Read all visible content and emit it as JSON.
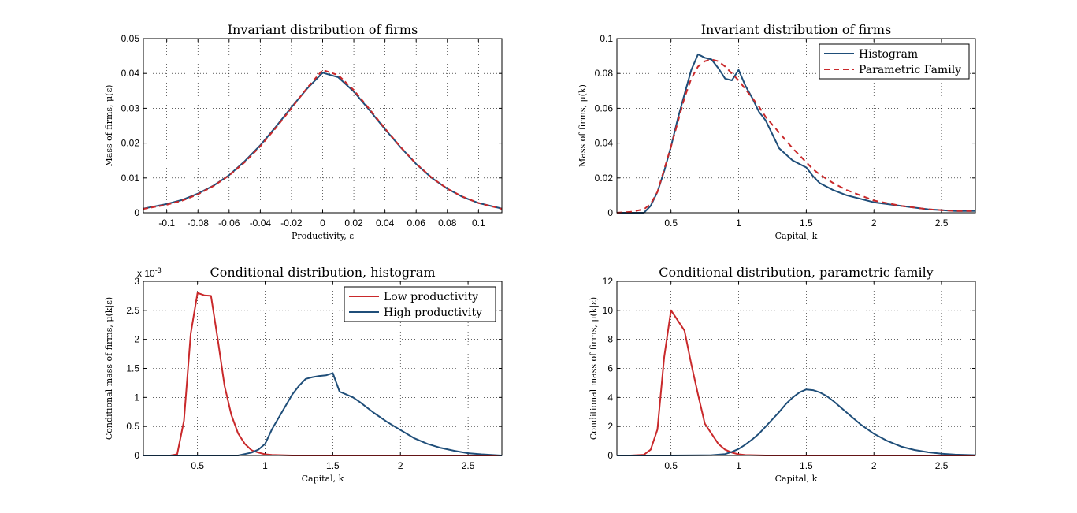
{
  "chart_data": [
    {
      "type": "line",
      "title": "Invariant distribution of firms",
      "xlabel": "Productivity, ε",
      "ylabel": "Mass of firms, μ(ε)",
      "xlim": [
        -0.115,
        0.115
      ],
      "ylim": [
        0,
        0.05
      ],
      "xticks": [
        -0.1,
        -0.08,
        -0.06,
        -0.04,
        -0.02,
        0,
        0.02,
        0.04,
        0.06,
        0.08,
        0.1
      ],
      "xtick_labels": [
        "-0.1",
        "-0.08",
        "-0.06",
        "-0.04",
        "-0.02",
        "0",
        "0.02",
        "0.04",
        "0.06",
        "0.08",
        "0.1"
      ],
      "yticks": [
        0,
        0.01,
        0.02,
        0.03,
        0.04,
        0.05
      ],
      "ytick_labels": [
        "0",
        "0.01",
        "0.02",
        "0.03",
        "0.04",
        "0.05"
      ],
      "grid": true,
      "series": [
        {
          "color": "#1f4e79",
          "dash": "none",
          "x": [
            -0.115,
            -0.1,
            -0.09,
            -0.08,
            -0.07,
            -0.06,
            -0.05,
            -0.04,
            -0.03,
            -0.02,
            -0.01,
            0,
            0.01,
            0.02,
            0.03,
            0.04,
            0.05,
            0.06,
            0.07,
            0.08,
            0.09,
            0.1,
            0.115
          ],
          "y": [
            0.0012,
            0.0025,
            0.0037,
            0.0055,
            0.0078,
            0.0108,
            0.0148,
            0.0194,
            0.0247,
            0.0303,
            0.0356,
            0.0402,
            0.0389,
            0.0348,
            0.0295,
            0.024,
            0.0188,
            0.014,
            0.01,
            0.0069,
            0.0045,
            0.0028,
            0.0012
          ]
        },
        {
          "color": "#c9292b",
          "dash": "6,4",
          "x": [
            -0.115,
            -0.1,
            -0.09,
            -0.08,
            -0.07,
            -0.06,
            -0.05,
            -0.04,
            -0.03,
            -0.02,
            -0.01,
            0,
            0.01,
            0.02,
            0.03,
            0.04,
            0.05,
            0.06,
            0.07,
            0.08,
            0.09,
            0.1,
            0.115
          ],
          "y": [
            0.0011,
            0.0023,
            0.0035,
            0.0053,
            0.0077,
            0.0107,
            0.0145,
            0.0191,
            0.0244,
            0.03,
            0.0358,
            0.041,
            0.0395,
            0.0352,
            0.0298,
            0.0242,
            0.0189,
            0.0141,
            0.0101,
            0.0069,
            0.0046,
            0.0028,
            0.0011
          ]
        }
      ]
    },
    {
      "type": "line",
      "title": "Invariant distribution of firms",
      "xlabel": "Capital, k",
      "ylabel": "Mass of firms, μ(k)",
      "xlim": [
        0.1,
        2.75
      ],
      "ylim": [
        0,
        0.1
      ],
      "xticks": [
        0.5,
        1,
        1.5,
        2,
        2.5
      ],
      "xtick_labels": [
        "0.5",
        "1",
        "1.5",
        "2",
        "2.5"
      ],
      "yticks": [
        0,
        0.02,
        0.04,
        0.06,
        0.08,
        0.1
      ],
      "ytick_labels": [
        "0",
        "0.02",
        "0.04",
        "0.06",
        "0.08",
        "0.1"
      ],
      "grid": true,
      "legend": {
        "placement": "top-right",
        "entries": [
          "Histogram",
          "Parametric Family"
        ]
      },
      "series": [
        {
          "name": "Histogram",
          "color": "#1f4e79",
          "dash": "none",
          "x": [
            0.1,
            0.2,
            0.3,
            0.35,
            0.4,
            0.45,
            0.5,
            0.55,
            0.6,
            0.65,
            0.7,
            0.75,
            0.8,
            0.85,
            0.9,
            0.95,
            1.0,
            1.05,
            1.1,
            1.15,
            1.2,
            1.3,
            1.4,
            1.5,
            1.55,
            1.6,
            1.7,
            1.8,
            1.9,
            2.0,
            2.2,
            2.4,
            2.6,
            2.75
          ],
          "y": [
            0,
            0,
            0,
            0.004,
            0.012,
            0.024,
            0.038,
            0.054,
            0.068,
            0.082,
            0.091,
            0.089,
            0.088,
            0.083,
            0.077,
            0.076,
            0.082,
            0.073,
            0.066,
            0.058,
            0.053,
            0.037,
            0.03,
            0.026,
            0.021,
            0.017,
            0.013,
            0.01,
            0.008,
            0.006,
            0.004,
            0.002,
            0.001,
            0.001
          ]
        },
        {
          "name": "Parametric Family",
          "color": "#c9292b",
          "dash": "7,5",
          "x": [
            0.1,
            0.2,
            0.3,
            0.35,
            0.4,
            0.45,
            0.5,
            0.55,
            0.6,
            0.65,
            0.7,
            0.75,
            0.8,
            0.85,
            0.9,
            0.95,
            1.0,
            1.05,
            1.1,
            1.15,
            1.2,
            1.3,
            1.4,
            1.5,
            1.55,
            1.6,
            1.7,
            1.8,
            1.9,
            2.0,
            2.2,
            2.4,
            2.6,
            2.75
          ],
          "y": [
            0,
            0.0005,
            0.002,
            0.005,
            0.012,
            0.025,
            0.038,
            0.052,
            0.066,
            0.077,
            0.084,
            0.087,
            0.088,
            0.087,
            0.084,
            0.08,
            0.076,
            0.071,
            0.066,
            0.061,
            0.055,
            0.046,
            0.037,
            0.029,
            0.025,
            0.022,
            0.017,
            0.013,
            0.01,
            0.007,
            0.004,
            0.002,
            0.001,
            0.001
          ]
        }
      ]
    },
    {
      "type": "line",
      "title": "Conditional distribution, histogram",
      "xlabel": "Capital, k",
      "ylabel": "Conditional mass of firms, μ(k|ε)",
      "y_multiplier": "x 10",
      "y_multiplier_exp": "-3",
      "xlim": [
        0.1,
        2.75
      ],
      "ylim": [
        0,
        3
      ],
      "xticks": [
        0.5,
        1,
        1.5,
        2,
        2.5
      ],
      "xtick_labels": [
        "0.5",
        "1",
        "1.5",
        "2",
        "2.5"
      ],
      "yticks": [
        0,
        0.5,
        1,
        1.5,
        2,
        2.5,
        3
      ],
      "ytick_labels": [
        "0",
        "0.5",
        "1",
        "1.5",
        "2",
        "2.5",
        "3"
      ],
      "grid": true,
      "legend": {
        "placement": "top-right",
        "entries": [
          "Low productivity",
          "High productivity"
        ]
      },
      "series": [
        {
          "name": "Low productivity",
          "color": "#c9292b",
          "dash": "none",
          "x": [
            0.1,
            0.2,
            0.3,
            0.35,
            0.4,
            0.45,
            0.5,
            0.55,
            0.6,
            0.65,
            0.7,
            0.75,
            0.8,
            0.85,
            0.9,
            0.95,
            1.0,
            1.05,
            1.2,
            1.5,
            2.0,
            2.75
          ],
          "y": [
            0,
            0,
            0,
            0.02,
            0.6,
            2.1,
            2.8,
            2.76,
            2.75,
            2.0,
            1.2,
            0.7,
            0.38,
            0.2,
            0.09,
            0.05,
            0.02,
            0.01,
            0,
            0,
            0,
            0
          ]
        },
        {
          "name": "High productivity",
          "color": "#1f4e79",
          "dash": "none",
          "x": [
            0.1,
            0.5,
            0.8,
            0.9,
            0.95,
            1.0,
            1.05,
            1.1,
            1.15,
            1.2,
            1.25,
            1.3,
            1.35,
            1.4,
            1.45,
            1.5,
            1.55,
            1.6,
            1.65,
            1.7,
            1.8,
            1.9,
            2.0,
            2.1,
            2.2,
            2.3,
            2.4,
            2.5,
            2.6,
            2.75
          ],
          "y": [
            0,
            0,
            0,
            0.05,
            0.1,
            0.2,
            0.45,
            0.65,
            0.85,
            1.05,
            1.2,
            1.32,
            1.35,
            1.37,
            1.38,
            1.42,
            1.1,
            1.05,
            1.0,
            0.92,
            0.74,
            0.58,
            0.44,
            0.3,
            0.2,
            0.13,
            0.08,
            0.04,
            0.02,
            0
          ]
        }
      ]
    },
    {
      "type": "line",
      "title": "Conditional distribution, parametric family",
      "xlabel": "Capital, k",
      "ylabel": "Conditional mass of firms, μ(k|ε)",
      "xlim": [
        0.1,
        2.75
      ],
      "ylim": [
        0,
        12
      ],
      "xticks": [
        0.5,
        1,
        1.5,
        2,
        2.5
      ],
      "xtick_labels": [
        "0.5",
        "1",
        "1.5",
        "2",
        "2.5"
      ],
      "yticks": [
        0,
        2,
        4,
        6,
        8,
        10,
        12
      ],
      "ytick_labels": [
        "0",
        "2",
        "4",
        "6",
        "8",
        "10",
        "12"
      ],
      "grid": true,
      "series": [
        {
          "name": "Low productivity",
          "color": "#c9292b",
          "dash": "none",
          "x": [
            0.1,
            0.2,
            0.3,
            0.35,
            0.4,
            0.45,
            0.5,
            0.55,
            0.6,
            0.65,
            0.7,
            0.75,
            0.8,
            0.85,
            0.9,
            0.95,
            1.0,
            1.05,
            1.2,
            1.5,
            2.0,
            2.75
          ],
          "y": [
            0,
            0,
            0.05,
            0.4,
            1.8,
            6.8,
            10.0,
            9.3,
            8.6,
            6.3,
            4.2,
            2.2,
            1.5,
            0.8,
            0.4,
            0.2,
            0.08,
            0.03,
            0,
            0,
            0,
            0
          ]
        },
        {
          "name": "High productivity",
          "color": "#1f4e79",
          "dash": "none",
          "x": [
            0.1,
            0.5,
            0.8,
            0.9,
            0.95,
            1.0,
            1.05,
            1.1,
            1.15,
            1.2,
            1.25,
            1.3,
            1.35,
            1.4,
            1.45,
            1.5,
            1.55,
            1.6,
            1.65,
            1.7,
            1.8,
            1.9,
            2.0,
            2.1,
            2.2,
            2.3,
            2.4,
            2.5,
            2.6,
            2.75
          ],
          "y": [
            0,
            0,
            0.02,
            0.1,
            0.25,
            0.45,
            0.75,
            1.1,
            1.5,
            2.0,
            2.5,
            3.0,
            3.55,
            4.0,
            4.35,
            4.55,
            4.5,
            4.35,
            4.1,
            3.75,
            2.95,
            2.15,
            1.5,
            1.0,
            0.62,
            0.38,
            0.22,
            0.12,
            0.06,
            0.02
          ]
        }
      ]
    }
  ]
}
